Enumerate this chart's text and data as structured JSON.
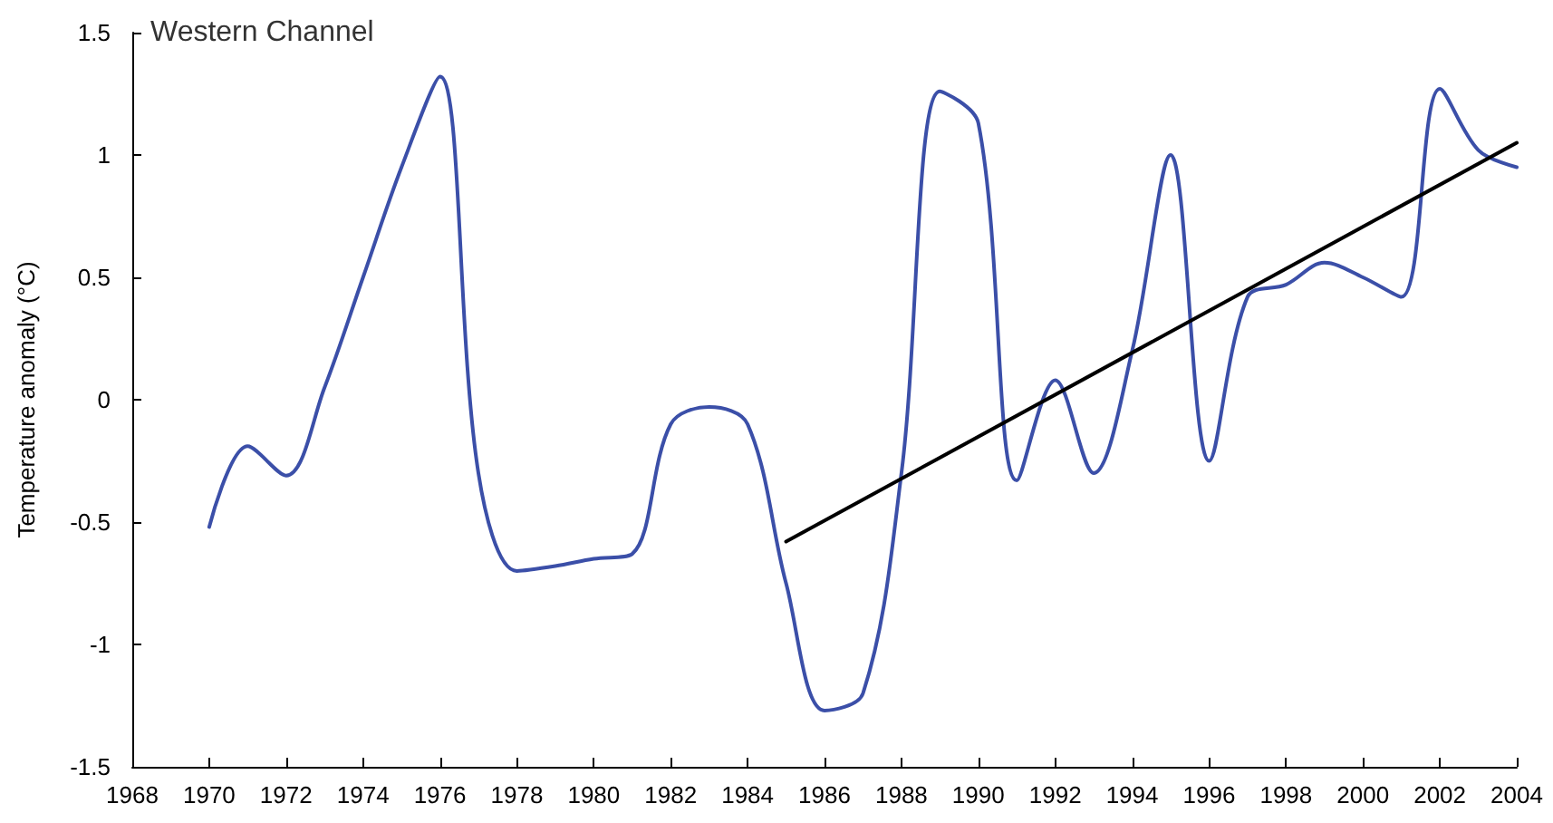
{
  "chart_data": {
    "type": "line",
    "ylabel": "Temperature anomaly (°C)",
    "annotations": [
      "Western Channel"
    ],
    "xlim": [
      1968,
      2004
    ],
    "xticks": [
      1968,
      1970,
      1972,
      1974,
      1976,
      1978,
      1980,
      1982,
      1984,
      1986,
      1988,
      1990,
      1992,
      1994,
      1996,
      1998,
      2000,
      2002,
      2004
    ],
    "ylim": [
      -1.5,
      1.5
    ],
    "yticks": [
      -1.5,
      -1,
      -0.5,
      0,
      0.5,
      1,
      1.5
    ],
    "grid": false,
    "marker": "none",
    "line_style": "solid",
    "series": [
      {
        "color": "#3b4fa8",
        "x": [
          1970,
          1971,
          1972,
          1973,
          1974,
          1975,
          1976,
          1977,
          1978,
          1979,
          1980,
          1981,
          1982,
          1983,
          1984,
          1985,
          1986,
          1987,
          1988,
          1989,
          1990,
          1991,
          1992,
          1993,
          1994,
          1995,
          1996,
          1997,
          1998,
          1999,
          2000,
          2001,
          2002,
          2003,
          2004
        ],
        "values": [
          -0.52,
          -0.19,
          -0.31,
          0.05,
          0.5,
          0.95,
          1.32,
          -0.3,
          -0.7,
          -0.68,
          -0.65,
          -0.63,
          -0.1,
          -0.03,
          -0.1,
          -0.75,
          -1.27,
          -1.2,
          -0.3,
          1.26,
          1.13,
          -0.33,
          0.08,
          -0.3,
          0.2,
          1.0,
          -0.25,
          0.42,
          0.47,
          0.56,
          0.5,
          0.42,
          1.27,
          1.02,
          0.95
        ]
      },
      {
        "type": "line",
        "color": "#000000",
        "x": [
          1985,
          2004
        ],
        "values": [
          -0.58,
          1.05
        ]
      }
    ]
  }
}
